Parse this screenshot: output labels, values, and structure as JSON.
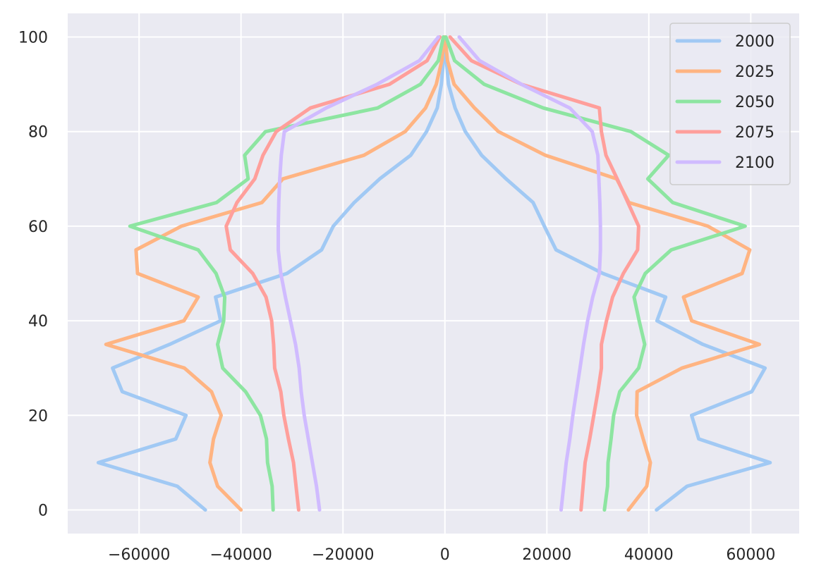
{
  "chart_data": {
    "type": "line",
    "title": "",
    "xlabel": "",
    "ylabel": "",
    "xlim": [
      -74000,
      69500
    ],
    "ylim": [
      -5,
      105
    ],
    "xticks": [
      -60000,
      -40000,
      -20000,
      0,
      20000,
      40000,
      60000
    ],
    "yticks": [
      0,
      20,
      40,
      60,
      80,
      100
    ],
    "xtick_labels": [
      "−60000",
      "−40000",
      "−20000",
      "0",
      "20000",
      "40000",
      "60000"
    ],
    "ytick_labels": [
      "0",
      "20",
      "40",
      "60",
      "80",
      "100"
    ],
    "grid": true,
    "background": "#eaeaf2",
    "legend_position": "top-right",
    "y": [
      0,
      5,
      10,
      15,
      20,
      25,
      30,
      35,
      40,
      45,
      50,
      55,
      60,
      65,
      70,
      75,
      80,
      85,
      90,
      95,
      100
    ],
    "series": [
      {
        "name": "2000",
        "color": "#a1c9f4",
        "left": [
          -47000,
          -52500,
          -68000,
          -52800,
          -50800,
          -63300,
          -65200,
          -54000,
          -44000,
          -45000,
          -31000,
          -24200,
          -21900,
          -17800,
          -12800,
          -6700,
          -3600,
          -1500,
          -700,
          -300,
          0
        ],
        "right": [
          41500,
          47500,
          63800,
          49800,
          48400,
          60200,
          62800,
          50600,
          41600,
          43300,
          31000,
          21800,
          19500,
          17300,
          12000,
          7200,
          4000,
          2000,
          700,
          300,
          0
        ]
      },
      {
        "name": "2025",
        "color": "#ffb482",
        "left": [
          -40000,
          -44600,
          -46100,
          -45400,
          -43900,
          -45800,
          -51100,
          -66500,
          -51200,
          -48400,
          -60300,
          -60600,
          -51700,
          -35900,
          -31800,
          -15900,
          -7800,
          -3800,
          -1700,
          -600,
          -100
        ],
        "right": [
          36000,
          39600,
          40300,
          38900,
          37600,
          37700,
          46500,
          61700,
          48400,
          46800,
          58300,
          59800,
          51600,
          36100,
          33700,
          19700,
          10500,
          5800,
          1800,
          500,
          0
        ]
      },
      {
        "name": "2050",
        "color": "#8de5a1",
        "left": [
          -33700,
          -33900,
          -34800,
          -35000,
          -36200,
          -39100,
          -43600,
          -44600,
          -43400,
          -43200,
          -44900,
          -48400,
          -61800,
          -44800,
          -38600,
          -39300,
          -35200,
          -13200,
          -4800,
          -1300,
          -300
        ],
        "right": [
          31300,
          31900,
          32000,
          32600,
          33100,
          34300,
          38000,
          39200,
          38100,
          37100,
          39300,
          44400,
          58900,
          44700,
          39800,
          43900,
          36500,
          19300,
          7700,
          1900,
          200
        ]
      },
      {
        "name": "2075",
        "color": "#ff9f9b",
        "left": [
          -28700,
          -29200,
          -29700,
          -30700,
          -31600,
          -32200,
          -33400,
          -33600,
          -34000,
          -35100,
          -37700,
          -42100,
          -42900,
          -40800,
          -37300,
          -35700,
          -33100,
          -26400,
          -10900,
          -3500,
          -1000
        ],
        "right": [
          26700,
          27100,
          27500,
          28400,
          29200,
          30000,
          30700,
          30700,
          31700,
          32900,
          35000,
          37800,
          38000,
          35900,
          33800,
          31600,
          30700,
          30300,
          15000,
          5200,
          1000
        ]
      },
      {
        "name": "2100",
        "color": "#d0bbff",
        "left": [
          -24600,
          -25200,
          -26000,
          -26800,
          -27600,
          -28200,
          -28600,
          -29300,
          -30300,
          -31300,
          -32200,
          -32700,
          -32700,
          -32600,
          -32400,
          -32100,
          -31500,
          -23300,
          -13300,
          -5000,
          -1300
        ],
        "right": [
          22800,
          23300,
          23800,
          24500,
          25100,
          25800,
          26500,
          27200,
          28000,
          29000,
          30300,
          30500,
          30500,
          30400,
          30200,
          30000,
          28900,
          24500,
          15000,
          6800,
          2800
        ]
      }
    ]
  }
}
